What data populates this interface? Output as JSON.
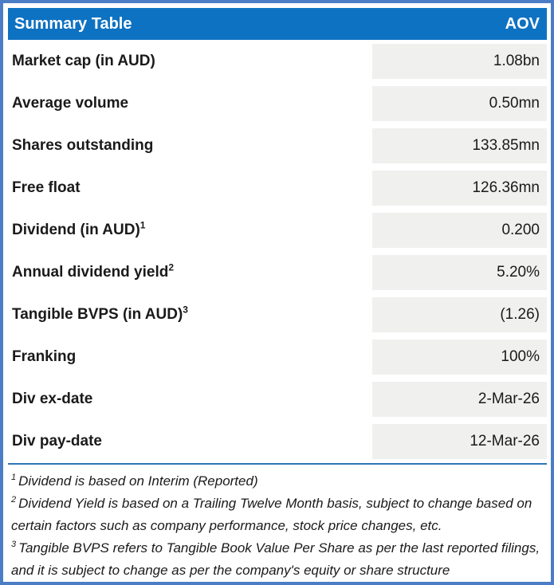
{
  "header": {
    "title": "Summary Table",
    "right_label": "AOV"
  },
  "rows": [
    {
      "label": "Market cap (in AUD)",
      "sup": "",
      "value": "1.08bn"
    },
    {
      "label": "Average volume",
      "sup": "",
      "value": "0.50mn"
    },
    {
      "label": "Shares outstanding",
      "sup": "",
      "value": "133.85mn"
    },
    {
      "label": "Free float",
      "sup": "",
      "value": "126.36mn"
    },
    {
      "label": "Dividend (in AUD)",
      "sup": "1",
      "value": "0.200"
    },
    {
      "label": "Annual dividend yield",
      "sup": "2",
      "value": "5.20%"
    },
    {
      "label": "Tangible BVPS (in AUD)",
      "sup": "3",
      "value": "(1.26)"
    },
    {
      "label": "Franking",
      "sup": "",
      "value": "100%"
    },
    {
      "label": "Div ex-date",
      "sup": "",
      "value": "2-Mar-26"
    },
    {
      "label": "Div pay-date",
      "sup": "",
      "value": "12-Mar-26"
    }
  ],
  "footnotes": [
    {
      "sup": "1",
      "text": "Dividend is based on Interim (Reported)"
    },
    {
      "sup": "2",
      "text": "Dividend Yield is based on a Trailing Twelve Month basis, subject to change based on certain factors such as company performance, stock price changes, etc."
    },
    {
      "sup": "3",
      "text": "Tangible BVPS refers to Tangible Book Value Per Share as per the last reported filings, and it is subject to change as per the company's equity or share structure"
    }
  ],
  "colors": {
    "header_bg": "#0e72c2",
    "frame_border": "#4a7dc6",
    "value_cell_bg": "#f0f0ef",
    "separator": "#2e75b6"
  }
}
